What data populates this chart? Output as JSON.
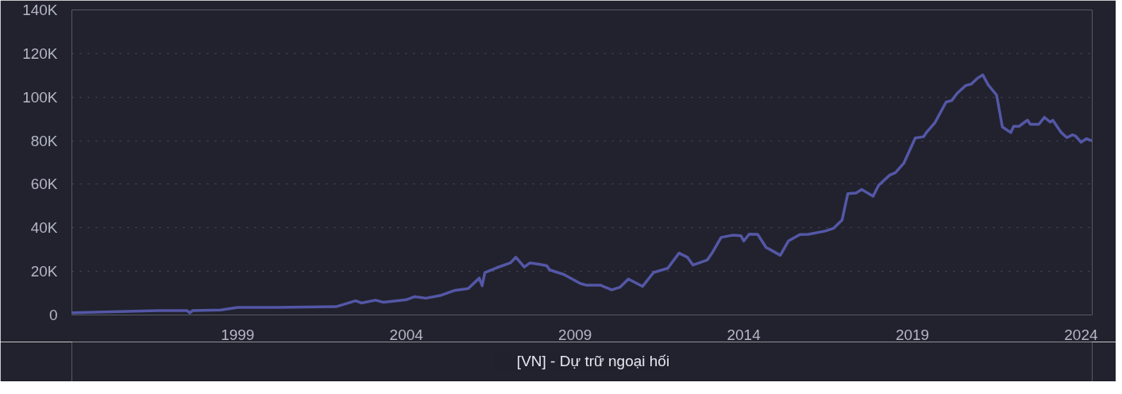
{
  "chart_data": {
    "type": "line",
    "x": [
      "1994-02",
      "1996-09",
      "1997-07",
      "1997-08",
      "1997-09",
      "1998-07",
      "1999-01",
      "2000-03",
      "2001-12",
      "2002-07",
      "2002-09",
      "2003-02",
      "2003-05",
      "2004-01",
      "2004-04",
      "2004-08",
      "2005-01",
      "2005-06",
      "2005-11",
      "2006-03",
      "2006-04",
      "2006-05",
      "2006-09",
      "2007-02",
      "2007-04",
      "2007-07",
      "2007-09",
      "2007-12",
      "2008-03",
      "2008-04",
      "2008-09",
      "2009-03",
      "2009-05",
      "2009-10",
      "2010-02",
      "2010-05",
      "2010-08",
      "2011-01",
      "2011-05",
      "2011-10",
      "2012-02",
      "2012-05",
      "2012-07",
      "2012-12",
      "2013-02",
      "2013-05",
      "2013-09",
      "2013-12",
      "2014-01",
      "2014-03",
      "2014-06",
      "2014-09",
      "2014-10",
      "2015-02",
      "2015-05",
      "2015-09",
      "2015-12",
      "2016-06",
      "2016-09",
      "2016-12",
      "2017-02",
      "2017-05",
      "2017-07",
      "2017-11",
      "2018-01",
      "2018-05",
      "2018-07",
      "2018-10",
      "2019-02",
      "2019-05",
      "2019-06",
      "2019-09",
      "2020-01",
      "2020-03",
      "2020-05",
      "2020-08",
      "2020-10",
      "2020-12",
      "2021-02",
      "2021-04",
      "2021-07",
      "2021-09",
      "2021-12",
      "2022-01",
      "2022-03",
      "2022-05",
      "2022-06",
      "2022-07",
      "2022-10",
      "2022-12",
      "2023-02",
      "2023-03",
      "2023-06",
      "2023-08",
      "2023-10",
      "2023-11",
      "2024-01",
      "2024-03",
      "2024-05"
    ],
    "series": [
      {
        "name": "[VN] - Dự trữ ngoại hối",
        "color": "#5457a6",
        "values": [
          1000,
          2000,
          2000,
          1000,
          2000,
          2300,
          3500,
          3500,
          3800,
          6500,
          5500,
          6800,
          5800,
          7000,
          8400,
          7700,
          8900,
          11200,
          12100,
          16900,
          13400,
          19500,
          21600,
          23900,
          26500,
          22000,
          23900,
          23300,
          22600,
          20700,
          18600,
          14400,
          13700,
          13700,
          11500,
          12700,
          16500,
          13100,
          19500,
          21400,
          28400,
          26500,
          22900,
          25200,
          29000,
          35600,
          36600,
          36400,
          33900,
          37100,
          37000,
          30900,
          30300,
          27400,
          34000,
          36900,
          37000,
          38500,
          39800,
          43600,
          55700,
          56000,
          57600,
          54500,
          59500,
          64200,
          65300,
          69700,
          81200,
          81800,
          83700,
          88200,
          97700,
          98400,
          101800,
          105300,
          106000,
          108500,
          110200,
          105600,
          100900,
          86300,
          83700,
          86600,
          86600,
          88500,
          89400,
          87500,
          87500,
          90700,
          88500,
          89400,
          83700,
          81400,
          82700,
          82200,
          79300,
          80900,
          79900
        ]
      }
    ],
    "xlim": [
      "1994-02",
      "2024-05"
    ],
    "xticks": [
      "1999",
      "2004",
      "2009",
      "2014",
      "2019",
      "2024"
    ],
    "ylim": [
      0,
      140000
    ],
    "yticks": [
      {
        "value": 0,
        "label": "0"
      },
      {
        "value": 20000,
        "label": "20K"
      },
      {
        "value": 40000,
        "label": "40K"
      },
      {
        "value": 60000,
        "label": "60K"
      },
      {
        "value": 80000,
        "label": "80K"
      },
      {
        "value": 100000,
        "label": "100K"
      },
      {
        "value": 120000,
        "label": "120K"
      },
      {
        "value": 140000,
        "label": "140K"
      }
    ],
    "grid": "y",
    "legend": "bottom",
    "line_style": "solid"
  }
}
